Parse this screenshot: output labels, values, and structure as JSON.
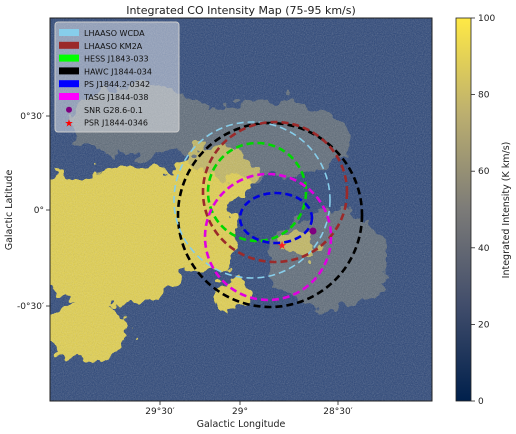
{
  "chart_data": {
    "type": "heatmap",
    "title": "Integrated CO Intensity Map (75-95 km/s)",
    "xlabel": "Galactic Longitude",
    "ylabel": "Galactic Latitude",
    "x_ticks": [
      "29°30′",
      "29°",
      "28°30′"
    ],
    "y_ticks": [
      "0°30′",
      "0°",
      "-0°30′"
    ],
    "colorbar": {
      "label": "Integrated Intensity (K km/s)",
      "range": [
        0,
        100
      ],
      "ticks": [
        "0",
        "20",
        "40",
        "60",
        "80",
        "100"
      ],
      "colors": [
        "#00204c",
        "#414d6b",
        "#7c7b78",
        "#bcaf6f",
        "#ffe945"
      ]
    },
    "legend": {
      "placement": "top-left",
      "entries": [
        {
          "label": "LHAASO WCDA",
          "color": "#87ceeb",
          "marker": "patch"
        },
        {
          "label": "LHAASO KM2A",
          "color": "#9b2a2a",
          "marker": "patch"
        },
        {
          "label": "HESS J1843-033",
          "color": "#00ff00",
          "marker": "patch"
        },
        {
          "label": "HAWC J1844-034",
          "color": "#000000",
          "marker": "patch"
        },
        {
          "label": "PS J1844.2-0342",
          "color": "#0000ff",
          "marker": "patch"
        },
        {
          "label": "TASG J1844-038",
          "color": "#ff00ff",
          "marker": "patch"
        },
        {
          "label": "SNR G28.6-0.1",
          "color": "#800080",
          "marker": "circle"
        },
        {
          "label": "PSR J1844-0346",
          "color": "#ff0000",
          "marker": "star"
        }
      ]
    }
  }
}
